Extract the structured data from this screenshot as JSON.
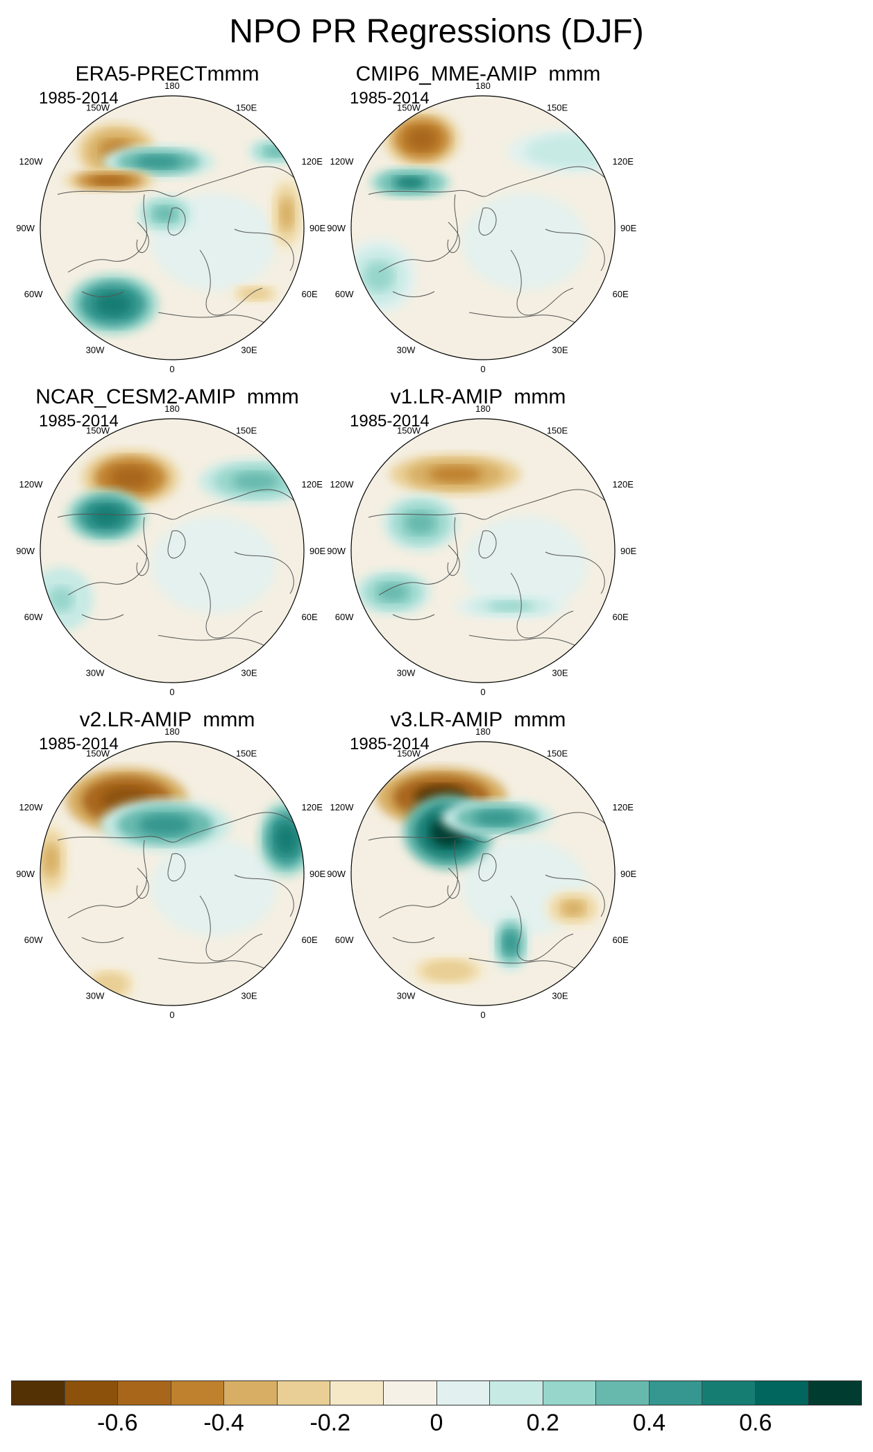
{
  "title": "NPO PR Regressions (DJF)",
  "chart_data": {
    "type": "polar-stereographic contour maps",
    "field": "Precipitation regression on NPO index",
    "season": "DJF",
    "panels": [
      {
        "name": "ERA5-PRECTmmm",
        "period": "1985-2014",
        "features": [
          {
            "region": "northeast Pacific (~150W)",
            "value": -0.5
          },
          {
            "region": "central North Pacific",
            "value": 0.4
          },
          {
            "region": "Alaska / NW North America coast",
            "value": -0.6
          },
          {
            "region": "North Atlantic (~50W)",
            "value": 0.6
          },
          {
            "region": "western Europe",
            "value": 0.3
          },
          {
            "region": "northern Japan / 120E",
            "value": 0.3
          },
          {
            "region": "east Siberia",
            "value": -0.4
          },
          {
            "region": "Mediterranean",
            "value": -0.3
          }
        ]
      },
      {
        "name": "CMIP6_MME-AMIP  mmm",
        "period": "1985-2014",
        "features": [
          {
            "region": "northeast Pacific (~150W)",
            "value": -0.6
          },
          {
            "region": "west coast North America",
            "value": 0.5
          },
          {
            "region": "subtropical North Atlantic",
            "value": 0.2
          },
          {
            "region": "northwest Pacific",
            "value": 0.15
          }
        ]
      },
      {
        "name": "NCAR_CESM2-AMIP  mmm",
        "period": "1985-2014",
        "features": [
          {
            "region": "northeast Pacific (~150W)",
            "value": -0.6
          },
          {
            "region": "west coast North America",
            "value": 0.55
          },
          {
            "region": "northwest Pacific / Kamchatka",
            "value": 0.3
          },
          {
            "region": "subtropical North Atlantic",
            "value": 0.25
          }
        ]
      },
      {
        "name": "v1.LR-AMIP  mmm",
        "period": "1985-2014",
        "features": [
          {
            "region": "North Pacific (~170W)",
            "value": -0.5
          },
          {
            "region": "Alaska",
            "value": 0.3
          },
          {
            "region": "western North America",
            "value": 0.3
          },
          {
            "region": "Europe / Mediterranean",
            "value": 0.2
          }
        ]
      },
      {
        "name": "v2.LR-AMIP  mmm",
        "period": "1985-2014",
        "features": [
          {
            "region": "northeast Pacific (~150W)",
            "value": -0.7
          },
          {
            "region": "Gulf of Alaska / central Pacific",
            "value": 0.4
          },
          {
            "region": "northwest Pacific (~120E)",
            "value": 0.6
          },
          {
            "region": "Mexico / southwest US",
            "value": -0.4
          },
          {
            "region": "subtropical North Atlantic",
            "value": -0.3
          }
        ]
      },
      {
        "name": "v3.LR-AMIP  mmm",
        "period": "1985-2014",
        "features": [
          {
            "region": "northeast Pacific (~150W)",
            "value": -0.75
          },
          {
            "region": "west coast North America",
            "value": 0.7
          },
          {
            "region": "central North Pacific",
            "value": 0.4
          },
          {
            "region": "East Asia (~90E)",
            "value": -0.4
          },
          {
            "region": "Scandinavia",
            "value": 0.4
          },
          {
            "region": "subtropical North Atlantic",
            "value": -0.3
          }
        ]
      }
    ],
    "lon_labels": {
      "top": "180",
      "top_left": "150W",
      "top_right": "150E",
      "upper_left": "120W",
      "upper_right": "120E",
      "left": "90W",
      "right": "90E",
      "lower_left": "60W",
      "lower_right": "60E",
      "bottom_left": "30W",
      "bottom_right": "30E",
      "bottom": "0"
    },
    "colorbar": {
      "levels": [
        -0.7,
        -0.6,
        -0.5,
        -0.4,
        -0.3,
        -0.2,
        -0.1,
        0,
        0.1,
        0.2,
        0.3,
        0.4,
        0.5,
        0.6,
        0.7
      ],
      "tick_labels": [
        "-0.6",
        "-0.4",
        "-0.2",
        "0",
        "0.2",
        "0.4",
        "0.6"
      ],
      "colors": [
        "#543005",
        "#8c510a",
        "#a8661a",
        "#bf812d",
        "#d7ae63",
        "#e9cf95",
        "#f5e8c6",
        "#f5f1e6",
        "#e2f1ef",
        "#c7eae5",
        "#97d6cb",
        "#67b9ae",
        "#35978f",
        "#167d73",
        "#01665e",
        "#003c30"
      ]
    }
  }
}
